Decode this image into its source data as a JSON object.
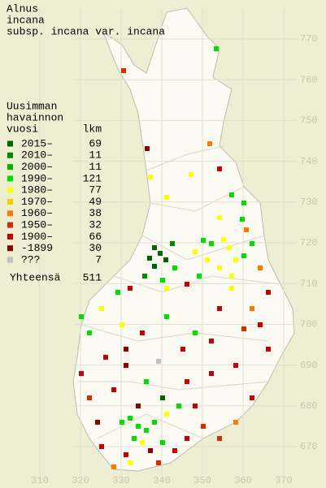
{
  "header": {
    "title_lines": [
      "Alnus",
      "incana",
      "subsp. incana var. incana"
    ]
  },
  "legend": {
    "heading_lines": [
      "Uusimman",
      "havainnon"
    ],
    "col_year": "vuosi",
    "col_count": "lkm",
    "rows": [
      {
        "label": "2015–",
        "count": 69,
        "color": "#006400"
      },
      {
        "label": "2010–",
        "count": 11,
        "color": "#008c00"
      },
      {
        "label": "2000–",
        "count": 11,
        "color": "#00b400"
      },
      {
        "label": "1990–",
        "count": 121,
        "color": "#00e000"
      },
      {
        "label": "1980–",
        "count": 77,
        "color": "#ffff00"
      },
      {
        "label": "1970–",
        "count": 49,
        "color": "#ffc800"
      },
      {
        "label": "1960–",
        "count": 38,
        "color": "#ff7800"
      },
      {
        "label": "1950–",
        "count": 32,
        "color": "#e02800"
      },
      {
        "label": "1900–",
        "count": 66,
        "color": "#c80000"
      },
      {
        "label": "-1899",
        "count": 30,
        "color": "#8c0000"
      },
      {
        "label": "???",
        "count": 7,
        "color": "#c0c0c0"
      }
    ],
    "total_label": "Yhteensä",
    "total_count": 511
  },
  "axes": {
    "y_labels": [
      "770",
      "760",
      "750",
      "740",
      "730",
      "720",
      "710",
      "700",
      "690",
      "680",
      "670"
    ],
    "x_labels": [
      "310",
      "320",
      "330",
      "340",
      "350",
      "360",
      "370"
    ]
  }
}
